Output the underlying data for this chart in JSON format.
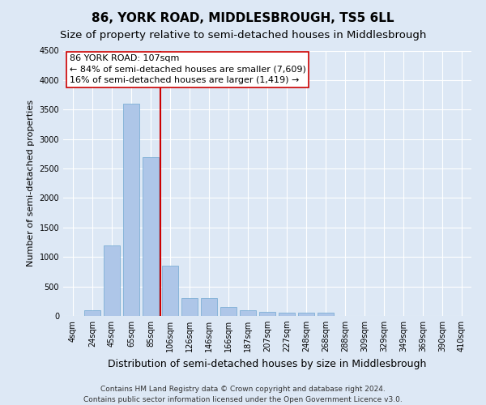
{
  "title": "86, YORK ROAD, MIDDLESBROUGH, TS5 6LL",
  "subtitle": "Size of property relative to semi-detached houses in Middlesbrough",
  "xlabel": "Distribution of semi-detached houses by size in Middlesbrough",
  "ylabel": "Number of semi-detached properties",
  "categories": [
    "4sqm",
    "24sqm",
    "45sqm",
    "65sqm",
    "85sqm",
    "106sqm",
    "126sqm",
    "146sqm",
    "166sqm",
    "187sqm",
    "207sqm",
    "227sqm",
    "248sqm",
    "268sqm",
    "288sqm",
    "309sqm",
    "329sqm",
    "349sqm",
    "369sqm",
    "390sqm",
    "410sqm"
  ],
  "values": [
    0,
    100,
    1200,
    3600,
    2700,
    850,
    300,
    300,
    150,
    100,
    75,
    60,
    50,
    50,
    0,
    0,
    0,
    0,
    0,
    0,
    0
  ],
  "bar_color": "#aec6e8",
  "bar_edge_color": "#6fa8d0",
  "vline_x_index": 5,
  "vline_color": "#cc0000",
  "annotation_line1": "86 YORK ROAD: 107sqm",
  "annotation_line2": "← 84% of semi-detached houses are smaller (7,609)",
  "annotation_line3": "16% of semi-detached houses are larger (1,419) →",
  "annotation_box_color": "#ffffff",
  "annotation_box_edge": "#cc0000",
  "ylim": [
    0,
    4500
  ],
  "yticks": [
    0,
    500,
    1000,
    1500,
    2000,
    2500,
    3000,
    3500,
    4000,
    4500
  ],
  "footer1": "Contains HM Land Registry data © Crown copyright and database right 2024.",
  "footer2": "Contains public sector information licensed under the Open Government Licence v3.0.",
  "bg_color": "#dde8f5",
  "plot_bg_color": "#dde8f5",
  "title_fontsize": 11,
  "subtitle_fontsize": 9.5,
  "ylabel_fontsize": 8,
  "xlabel_fontsize": 9,
  "tick_fontsize": 7,
  "annotation_fontsize": 8,
  "footer_fontsize": 6.5
}
